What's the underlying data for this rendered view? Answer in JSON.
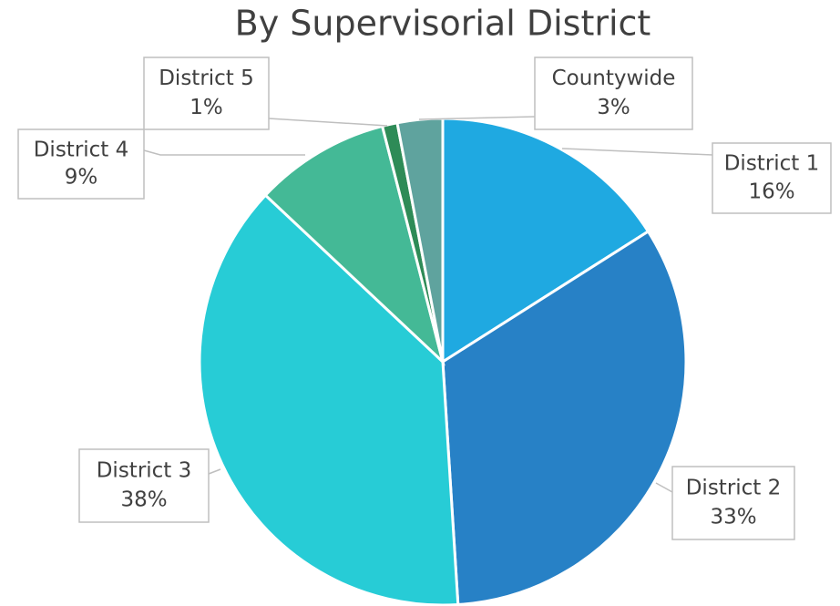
{
  "chart_data": {
    "type": "pie",
    "title": "By Supervisorial District",
    "categories": [
      "District 1",
      "District 2",
      "District 3",
      "District 4",
      "District 5",
      "Countywide"
    ],
    "values": [
      16,
      33,
      38,
      9,
      1,
      3
    ],
    "value_labels": [
      "16%",
      "33%",
      "38%",
      "9%",
      "1%",
      "3%"
    ],
    "colors": [
      "#1fa9e1",
      "#2781c6",
      "#27ccd6",
      "#44b996",
      "#2e8b57",
      "#5fa39e"
    ]
  }
}
